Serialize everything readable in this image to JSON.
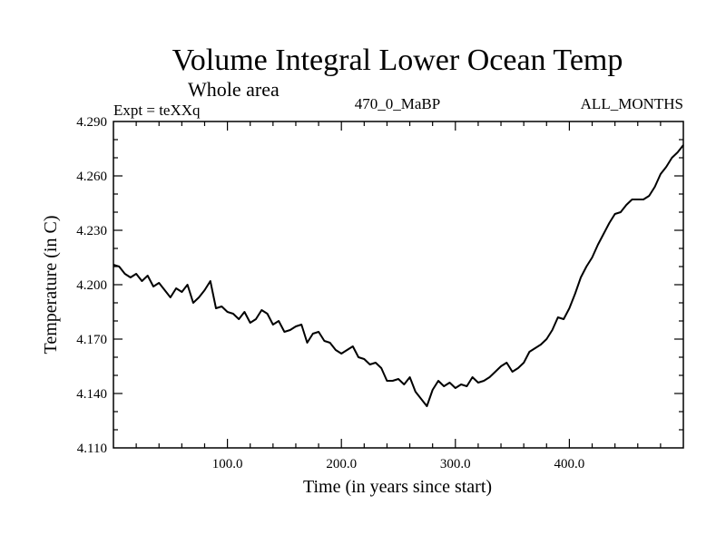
{
  "chart_data": {
    "type": "line",
    "title": "Volume Integral Lower Ocean Temp",
    "subtitle": "Whole area",
    "left_label": "Expt = teXXq",
    "center_label": "470_0_MaBP",
    "right_label": "ALL_MONTHS",
    "xlabel": "Time (in years since start)",
    "ylabel": "Temperature (in C)",
    "xlim": [
      0,
      500
    ],
    "ylim": [
      4.11,
      4.29
    ],
    "x_ticks": [
      100,
      200,
      300,
      400
    ],
    "x_tick_labels": [
      "100.0",
      "200.0",
      "300.0",
      "400.0"
    ],
    "y_ticks": [
      4.11,
      4.14,
      4.17,
      4.2,
      4.23,
      4.26,
      4.29
    ],
    "y_tick_labels": [
      "4.110",
      "4.140",
      "4.170",
      "4.200",
      "4.230",
      "4.260",
      "4.290"
    ],
    "grid": false,
    "series": [
      {
        "name": "temperature",
        "color": "#000000",
        "x": [
          0,
          5,
          10,
          15,
          20,
          25,
          30,
          35,
          40,
          45,
          50,
          55,
          60,
          65,
          70,
          75,
          80,
          85,
          90,
          95,
          100,
          105,
          110,
          115,
          120,
          125,
          130,
          135,
          140,
          145,
          150,
          155,
          160,
          165,
          170,
          175,
          180,
          185,
          190,
          195,
          200,
          205,
          210,
          215,
          220,
          225,
          230,
          235,
          240,
          245,
          250,
          255,
          260,
          265,
          270,
          275,
          280,
          285,
          290,
          295,
          300,
          305,
          310,
          315,
          320,
          325,
          330,
          335,
          340,
          345,
          350,
          355,
          360,
          365,
          370,
          375,
          380,
          385,
          390,
          395,
          400,
          405,
          410,
          415,
          420,
          425,
          430,
          435,
          440,
          445,
          450,
          455,
          460,
          465,
          470,
          475,
          480,
          485,
          490,
          495,
          500
        ],
        "y": [
          4.211,
          4.21,
          4.206,
          4.204,
          4.206,
          4.202,
          4.205,
          4.199,
          4.201,
          4.197,
          4.193,
          4.198,
          4.196,
          4.2,
          4.19,
          4.193,
          4.197,
          4.202,
          4.187,
          4.188,
          4.185,
          4.184,
          4.181,
          4.185,
          4.179,
          4.181,
          4.186,
          4.184,
          4.178,
          4.18,
          4.174,
          4.175,
          4.177,
          4.178,
          4.168,
          4.173,
          4.174,
          4.169,
          4.168,
          4.164,
          4.162,
          4.164,
          4.166,
          4.16,
          4.159,
          4.156,
          4.157,
          4.154,
          4.147,
          4.147,
          4.148,
          4.145,
          4.149,
          4.141,
          4.137,
          4.133,
          4.142,
          4.147,
          4.144,
          4.146,
          4.143,
          4.145,
          4.144,
          4.149,
          4.146,
          4.147,
          4.149,
          4.152,
          4.155,
          4.157,
          4.152,
          4.154,
          4.157,
          4.163,
          4.165,
          4.167,
          4.17,
          4.175,
          4.182,
          4.181,
          4.187,
          4.195,
          4.204,
          4.21,
          4.215,
          4.222,
          4.228,
          4.234,
          4.239,
          4.24,
          4.244,
          4.247,
          4.247,
          4.247,
          4.249,
          4.254,
          4.261,
          4.265,
          4.27,
          4.273,
          4.277
        ]
      }
    ]
  }
}
